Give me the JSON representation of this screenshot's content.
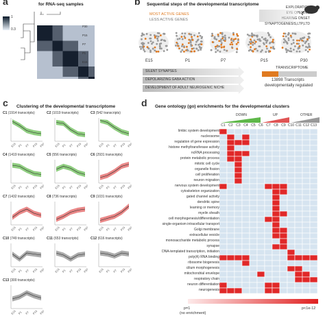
{
  "panel_a": {
    "letter": "a",
    "title": "for RNA-seq samples",
    "scale_max": "1",
    "scale_min": "0.3",
    "row_labels": [
      "P30",
      "P15",
      "P7",
      "P1",
      "E15"
    ]
  },
  "panel_b": {
    "letter": "b",
    "title": "Sequential steps of the developmental transcriptome",
    "legend_active": "MOST ACTIVE GENES",
    "legend_less": "LESS ACTIVE GENES",
    "events": [
      "EXPLORATION",
      "EYE OPENING",
      "HEARING ONSET",
      "SYNAPTOGENESIS,LTP,LTD"
    ],
    "stages": [
      "E15",
      "P1",
      "P7",
      "P15",
      "P30"
    ],
    "processes": [
      "SILENT SYNAPSES",
      "DEPOLARIZING GABA ACTION",
      "DEVELOPMENT OF ADULT NEUROGENIC NICHE"
    ],
    "transcriptome_label": "TRANSCRIPTOME",
    "transcripts_text": "13898 Transcripts",
    "regulated_text": "developmentally regulated"
  },
  "panel_c": {
    "letter": "c",
    "title": "Clustering of the developmental transcriptome",
    "x_ticks": [
      "E15",
      "P1",
      "P7",
      "P15",
      "P30"
    ],
    "clusters": [
      {
        "id": "C1",
        "count": "(1914 transcripts)",
        "color": "#5fb84a"
      },
      {
        "id": "C2",
        "count": "(1019 transcripts)",
        "color": "#5fb84a"
      },
      {
        "id": "C3",
        "count": "(542 transcripts)",
        "color": "#5fb84a"
      },
      {
        "id": "C4",
        "count": "(1419 transcripts)",
        "color": "#5fb84a"
      },
      {
        "id": "C5",
        "count": "(556 transcripts)",
        "color": "#5fb84a"
      },
      {
        "id": "C6",
        "count": "(2931 transcripts)",
        "color": "#e05555"
      },
      {
        "id": "C7",
        "count": "(1432 transcripts)",
        "color": "#e05555"
      },
      {
        "id": "C8",
        "count": "(736 transcripts)",
        "color": "#e05555"
      },
      {
        "id": "C9",
        "count": "(1031 transcripts)",
        "color": "#e05555"
      },
      {
        "id": "C10",
        "count": "(749 transcripts)",
        "color": "#888888"
      },
      {
        "id": "C11",
        "count": "(653 transcripts)",
        "color": "#888888"
      },
      {
        "id": "C12",
        "count": "(616 transcripts)",
        "color": "#888888"
      },
      {
        "id": "C13",
        "count": "(300 transcripts)",
        "color": "#888888"
      }
    ]
  },
  "panel_d": {
    "letter": "d",
    "title": "Gene ontology (go) enrichments for the developmental clusters",
    "groups": [
      "DOWN",
      "UP",
      "OTHER"
    ],
    "columns": [
      "C1",
      "C2",
      "C3",
      "C4",
      "C5",
      "C6",
      "C7",
      "C8",
      "C9",
      "C10",
      "C11",
      "C12",
      "C13"
    ],
    "terms": [
      "limbic system development",
      "nucleosome",
      "regulation of gene expression",
      "histone methyltransferase activity",
      "ncRNA processing",
      "protein metabolic process",
      "mitotic cell cycle",
      "organelle fission",
      "cell proliferation",
      "neuron migration",
      "nervous system development",
      "cytoskeleton organization",
      "gated channel activity",
      "dendritic spine",
      "learning or memory",
      "myelin sheath",
      "cell morphogenesis/differentiation",
      "single-organism intracellular transport",
      "Golgi membrane",
      "extracellular vesicle",
      "monosaccharide metabolic process",
      "synapse",
      "DNA-templated transcription, initiation",
      "poly(A) RNA binding",
      "ribosome biogenesis",
      "cilium morphogenesis",
      "mitochondrial envelope",
      "respiratory chain",
      "neuron differentiation",
      "neurogenesis"
    ],
    "scale_left": "p=1",
    "scale_left_note": "(no enrichment)",
    "scale_right": "p<1e-12"
  }
}
